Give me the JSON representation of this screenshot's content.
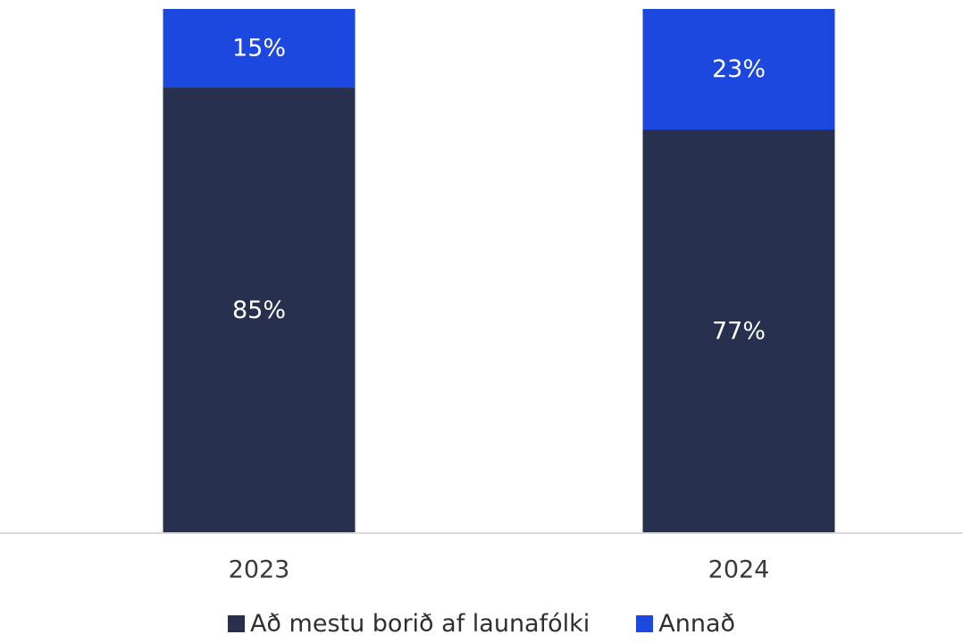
{
  "chart_data": {
    "type": "bar",
    "stacked": true,
    "categories": [
      "2023",
      "2024"
    ],
    "series": [
      {
        "name": "Að mestu borið af launafólki",
        "values": [
          85,
          77
        ],
        "labels": [
          "85%",
          "77%"
        ],
        "color": "#27304f"
      },
      {
        "name": "Annað",
        "values": [
          15,
          23
        ],
        "labels": [
          "15%",
          "23%"
        ],
        "color": "#1c48e0"
      }
    ],
    "ylim": [
      0,
      100
    ],
    "grid": false,
    "legend": "bottom"
  }
}
